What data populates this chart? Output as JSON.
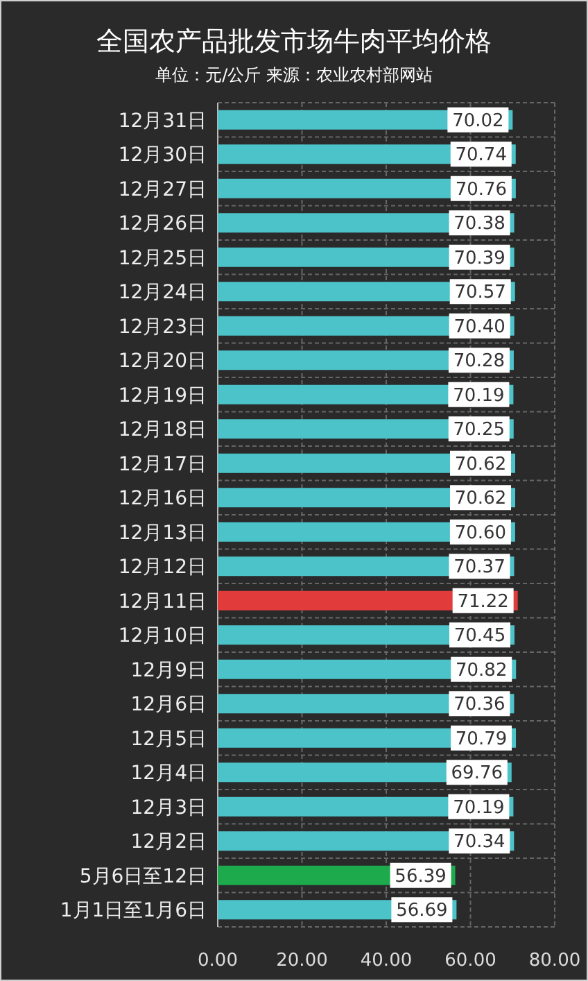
{
  "chart_data": {
    "type": "bar",
    "orientation": "horizontal",
    "title": "全国农产品批发市场牛肉平均价格",
    "subtitle": "单位：元/公斤 来源：农业农村部网站",
    "categories": [
      "12月31日",
      "12月30日",
      "12月27日",
      "12月26日",
      "12月25日",
      "12月24日",
      "12月23日",
      "12月20日",
      "12月19日",
      "12月18日",
      "12月17日",
      "12月16日",
      "12月13日",
      "12月12日",
      "12月11日",
      "12月10日",
      "12月9日",
      "12月6日",
      "12月5日",
      "12月4日",
      "12月3日",
      "12月2日",
      "5月6日至12日",
      "1月1日至1月6日"
    ],
    "values": [
      70.02,
      70.74,
      70.76,
      70.38,
      70.39,
      70.57,
      70.4,
      70.28,
      70.19,
      70.25,
      70.62,
      70.62,
      70.6,
      70.37,
      71.22,
      70.45,
      70.82,
      70.36,
      70.79,
      69.76,
      70.19,
      70.34,
      56.39,
      56.69
    ],
    "value_labels": [
      "70.02",
      "70.74",
      "70.76",
      "70.38",
      "70.39",
      "70.57",
      "70.40",
      "70.28",
      "70.19",
      "70.25",
      "70.62",
      "70.62",
      "70.60",
      "70.37",
      "71.22",
      "70.45",
      "70.82",
      "70.36",
      "70.79",
      "69.76",
      "70.19",
      "70.34",
      "56.39",
      "56.69"
    ],
    "colors": [
      "#4cc3c9",
      "#4cc3c9",
      "#4cc3c9",
      "#4cc3c9",
      "#4cc3c9",
      "#4cc3c9",
      "#4cc3c9",
      "#4cc3c9",
      "#4cc3c9",
      "#4cc3c9",
      "#4cc3c9",
      "#4cc3c9",
      "#4cc3c9",
      "#4cc3c9",
      "#e23b3b",
      "#4cc3c9",
      "#4cc3c9",
      "#4cc3c9",
      "#4cc3c9",
      "#4cc3c9",
      "#4cc3c9",
      "#4cc3c9",
      "#1caa4c",
      "#4cc3c9"
    ],
    "xlim": [
      0,
      80
    ],
    "xticks": [
      {
        "value": 0,
        "label": "0.00"
      },
      {
        "value": 20,
        "label": "20.00"
      },
      {
        "value": 40,
        "label": "40.00"
      },
      {
        "value": 60,
        "label": "60.00"
      },
      {
        "value": 80,
        "label": "80.00"
      }
    ],
    "grid": true
  }
}
